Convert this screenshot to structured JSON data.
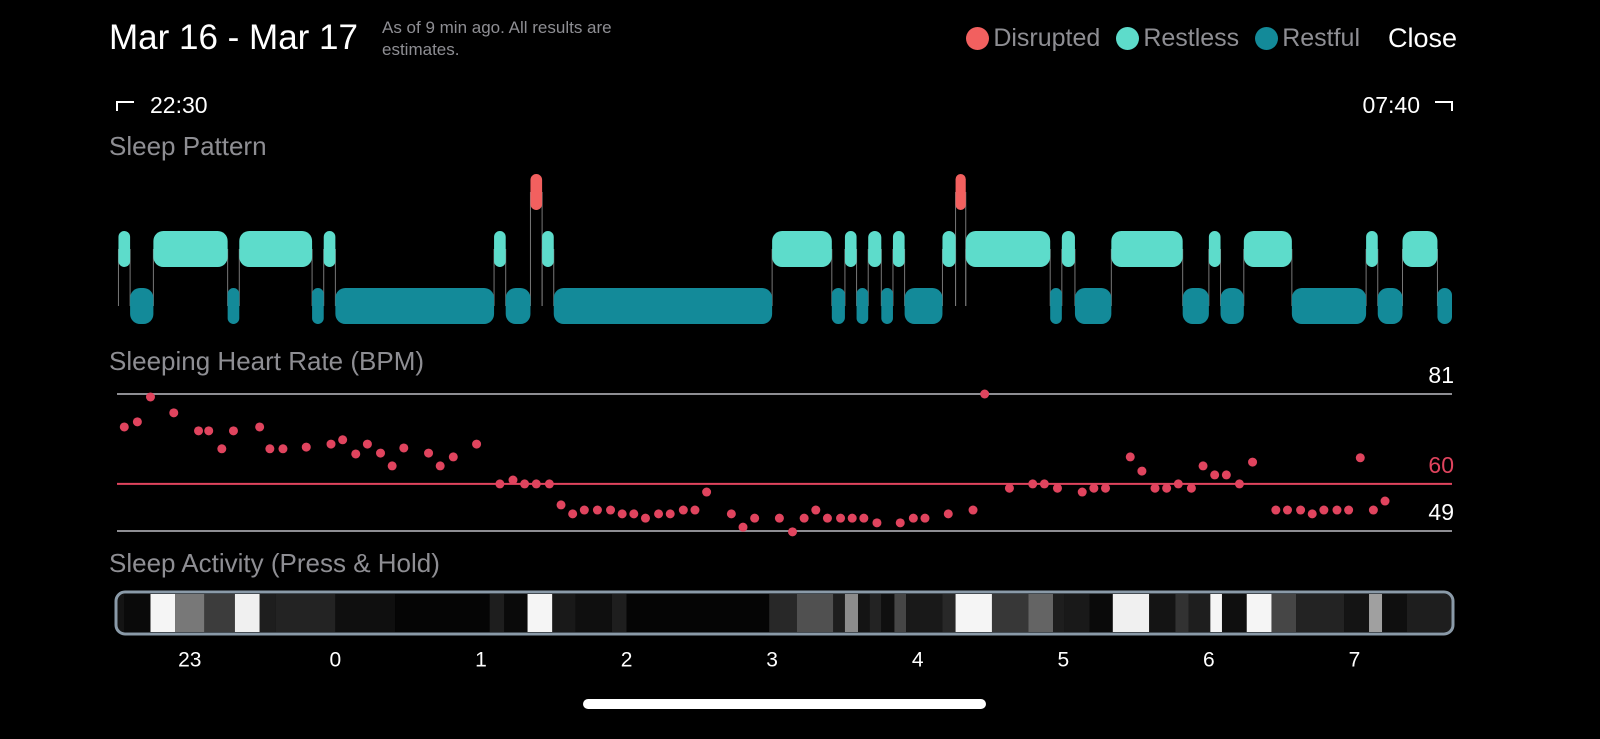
{
  "header": {
    "title": "Mar 16 - Mar 17",
    "subtitle": "As of 9 min ago. All results are estimates.",
    "close": "Close"
  },
  "time_range": {
    "start": "22:30",
    "end": "07:40"
  },
  "chart_data": [
    {
      "type": "timeline",
      "title": "Sleep Pattern",
      "xlim": [
        22.5,
        31.67
      ],
      "series": [
        {
          "name": "Disrupted",
          "color": "#f2605f",
          "start": [
            25.34,
            28.26
          ],
          "end": [
            25.42,
            28.33
          ]
        },
        {
          "name": "Restless",
          "color": "#5ddccb",
          "start": [
            22.51,
            22.75,
            23.34,
            23.92,
            25.09,
            25.42,
            27.0,
            27.5,
            27.66,
            27.83,
            28.17,
            28.33,
            28.99,
            29.33,
            30.0,
            30.24,
            31.08,
            31.33
          ],
          "end": [
            22.59,
            23.26,
            23.84,
            24.0,
            25.17,
            25.5,
            27.41,
            27.58,
            27.75,
            27.91,
            28.26,
            28.91,
            29.08,
            29.82,
            30.08,
            30.57,
            31.16,
            31.57
          ]
        },
        {
          "name": "Restful",
          "color": "#138a99",
          "start": [
            22.59,
            23.26,
            23.84,
            24.0,
            25.17,
            25.5,
            27.41,
            27.58,
            27.75,
            27.91,
            28.91,
            29.08,
            29.82,
            30.08,
            30.57,
            31.16,
            31.57
          ],
          "end": [
            22.75,
            23.34,
            23.92,
            25.09,
            25.34,
            27.0,
            27.5,
            27.66,
            27.83,
            28.17,
            28.99,
            29.33,
            30.0,
            30.24,
            31.08,
            31.33,
            31.67
          ]
        }
      ]
    },
    {
      "type": "scatter",
      "title": "Sleeping Heart Rate (BPM)",
      "color": "#e0445e",
      "xlim": [
        22.5,
        31.67
      ],
      "ylim": [
        49,
        81
      ],
      "yticks": [
        49,
        60,
        81
      ],
      "tick_colors": [
        "#8e8e93",
        "#e0445e",
        "#8e8e93"
      ],
      "tick_label_colors": [
        "#ffffff",
        "#e0445e",
        "#ffffff"
      ],
      "x": [
        22.55,
        22.64,
        22.73,
        22.89,
        23.06,
        23.13,
        23.22,
        23.3,
        23.48,
        23.55,
        23.64,
        23.8,
        23.97,
        24.05,
        24.14,
        24.22,
        24.31,
        24.39,
        24.47,
        24.64,
        24.72,
        24.81,
        24.97,
        25.13,
        25.22,
        25.3,
        25.38,
        25.47,
        25.55,
        25.63,
        25.71,
        25.8,
        25.89,
        25.97,
        26.05,
        26.13,
        26.22,
        26.3,
        26.39,
        26.47,
        26.55,
        26.72,
        26.8,
        26.88,
        27.05,
        27.14,
        27.22,
        27.3,
        27.38,
        27.47,
        27.55,
        27.63,
        27.72,
        27.88,
        27.97,
        28.05,
        28.21,
        28.38,
        28.46,
        28.63,
        28.79,
        28.87,
        28.96,
        29.13,
        29.21,
        29.29,
        29.46,
        29.54,
        29.63,
        29.71,
        29.79,
        29.88,
        29.96,
        30.04,
        30.12,
        30.21,
        30.3,
        30.46,
        30.54,
        30.63,
        30.71,
        30.79,
        30.88,
        30.96,
        31.04,
        31.13,
        31.21
      ],
      "values": [
        73.3,
        74.5,
        80.3,
        76.6,
        72.4,
        72.4,
        68.2,
        72.4,
        73.3,
        68.2,
        68.2,
        68.6,
        69.3,
        70.3,
        67.0,
        69.3,
        67.2,
        64.2,
        68.4,
        67.2,
        64.2,
        66.3,
        69.3,
        60.0,
        60.9,
        60.0,
        60.0,
        60.0,
        55.1,
        53.0,
        53.9,
        53.9,
        53.9,
        53.0,
        53.0,
        52.0,
        53.0,
        53.0,
        53.9,
        53.9,
        58.1,
        53.0,
        49.9,
        52.0,
        52.0,
        48.8,
        52.0,
        53.9,
        52.0,
        52.0,
        52.0,
        52.0,
        50.9,
        50.9,
        52.0,
        52.0,
        53.0,
        53.9,
        81.0,
        59.0,
        60.0,
        60.0,
        59.0,
        58.1,
        59.0,
        59.0,
        66.3,
        63.0,
        59.0,
        59.0,
        60.0,
        59.0,
        64.2,
        62.1,
        62.1,
        60.0,
        65.1,
        53.9,
        53.9,
        53.9,
        53.0,
        53.9,
        53.9,
        53.9,
        66.1,
        53.9,
        56.0
      ]
    },
    {
      "type": "strip",
      "title": "Sleep Activity (Press & Hold)",
      "xlim": [
        22.5,
        31.67
      ],
      "xticks": [
        23,
        {
          "value": 24,
          "label": "0"
        },
        {
          "value": 25,
          "label": "1"
        },
        {
          "value": 26,
          "label": "2"
        },
        {
          "value": 27,
          "label": "3"
        },
        {
          "value": 28,
          "label": "4"
        },
        {
          "value": 29,
          "label": "5"
        },
        {
          "value": 30,
          "label": "6"
        },
        {
          "value": 31,
          "label": "7"
        }
      ],
      "bins": [
        22.5,
        22.55,
        22.73,
        22.9,
        23.1,
        23.31,
        23.48,
        23.59,
        24.0,
        24.41,
        25.06,
        25.16,
        25.32,
        25.49,
        25.65,
        25.9,
        26.0,
        26.98,
        27.17,
        27.42,
        27.5,
        27.59,
        27.67,
        27.75,
        27.84,
        27.92,
        28.17,
        28.26,
        28.51,
        28.76,
        28.93,
        29.01,
        29.18,
        29.34,
        29.59,
        29.77,
        29.86,
        30.01,
        30.09,
        30.26,
        30.43,
        30.6,
        30.93,
        31.1,
        31.19,
        31.36,
        31.67
      ],
      "values": [
        20,
        10,
        245,
        120,
        60,
        240,
        30,
        35,
        15,
        5,
        30,
        10,
        245,
        25,
        15,
        30,
        5,
        40,
        80,
        30,
        140,
        20,
        35,
        15,
        70,
        25,
        40,
        245,
        55,
        100,
        30,
        25,
        10,
        240,
        20,
        50,
        30,
        245,
        15,
        245,
        70,
        35,
        20,
        160,
        15,
        30
      ]
    }
  ]
}
